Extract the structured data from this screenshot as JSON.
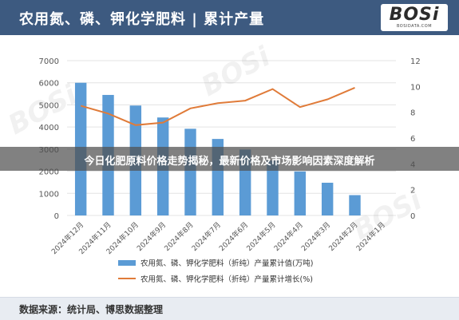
{
  "header": {
    "title": "农用氮、磷、钾化学肥料 | 累计产量"
  },
  "logo": {
    "text": "BOSi",
    "sub": "BOSIDATA.COM"
  },
  "banner": {
    "text": "今日化肥原料价格走势揭秘，最新价格及市场影响因素深度解析"
  },
  "footer": {
    "source": "数据来源：统计局、博思数据整理"
  },
  "colors": {
    "header_bg": "#3d5a80",
    "bar": "#5b9bd5",
    "line": "#e07b39"
  },
  "chart_data": {
    "type": "bar",
    "categories": [
      "2024年12月",
      "2024年11月",
      "2024年10月",
      "2024年9月",
      "2024年8月",
      "2024年7月",
      "2024年6月",
      "2024年5月",
      "2024年4月",
      "2024年3月",
      "2024年2月",
      "2024年1月"
    ],
    "series": [
      {
        "name": "农用氮、磷、钾化学肥料（折纯）产量累计值(万吨)",
        "type": "bar",
        "axis": "left",
        "values": [
          6000,
          5450,
          4970,
          4430,
          3920,
          3460,
          2980,
          2480,
          1990,
          1480,
          920,
          null
        ]
      },
      {
        "name": "农用氮、磷、钾化学肥料（折纯）产量累计增长(%)",
        "type": "line",
        "axis": "right",
        "values": [
          8.5,
          7.9,
          7.0,
          7.2,
          8.3,
          8.7,
          8.9,
          9.8,
          8.4,
          9.0,
          9.9,
          null
        ]
      }
    ],
    "ylim_left": [
      0,
      7000
    ],
    "ylim_right": [
      0,
      12
    ],
    "yticks_left": [
      "0",
      "1000",
      "2000",
      "3000",
      "4000",
      "5000",
      "6000",
      "7000"
    ],
    "yticks_right": [
      "0",
      "2",
      "4",
      "6",
      "8",
      "10",
      "12"
    ],
    "grid": true,
    "legend_position": "bottom"
  }
}
